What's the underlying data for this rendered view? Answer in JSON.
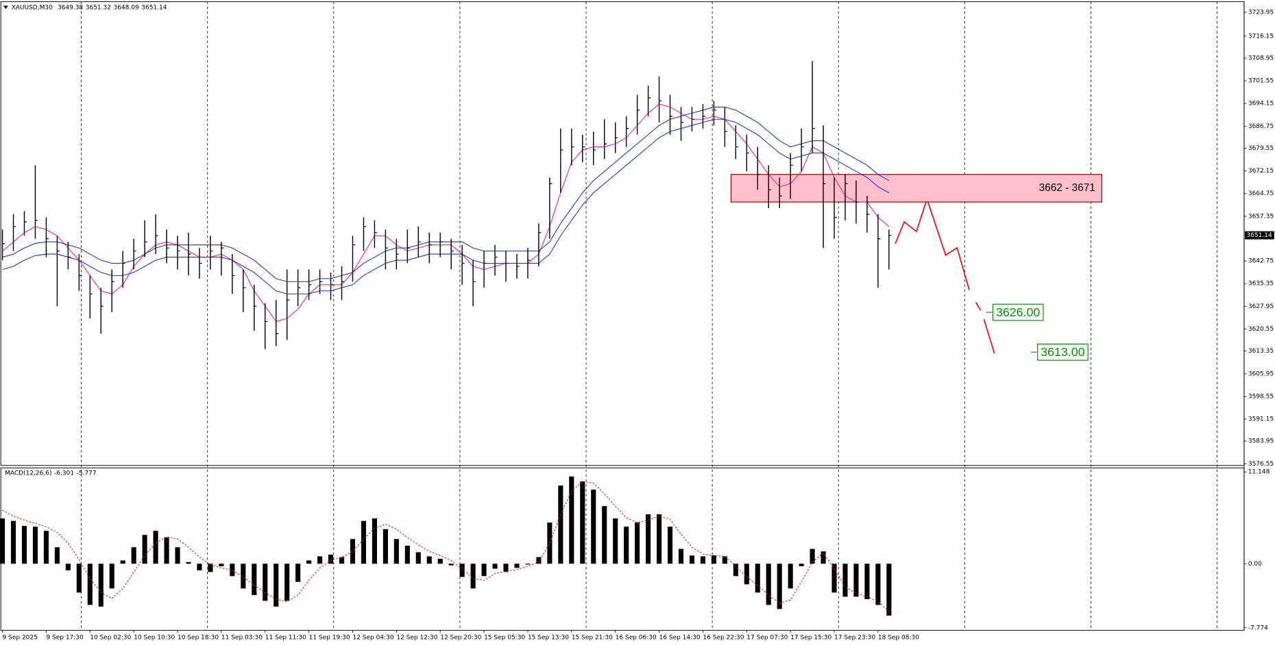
{
  "chart_data": [
    {
      "type": "ohlc",
      "header": {
        "symbol": "XAUUSD,M30",
        "open": 3649.38,
        "high": 3651.32,
        "low": 3648.09,
        "close": 3651.14
      },
      "ylim": [
        3576.0,
        3727.4
      ],
      "yticks": [
        3723.95,
        3716.15,
        3708.95,
        3701.55,
        3694.15,
        3686.75,
        3679.55,
        3672.15,
        3664.75,
        3657.35,
        3642.75,
        3635.35,
        3627.95,
        3620.55,
        3613.35,
        3605.95,
        3598.55,
        3591.15,
        3583.95,
        3576.55
      ],
      "color": "#000000",
      "high": [
        3653,
        3658,
        3659,
        3674,
        3657,
        3651,
        3649,
        3645,
        3638,
        3634,
        3640,
        3646,
        3650,
        3656,
        3658,
        3653,
        3651,
        3652,
        3647,
        3651,
        3649,
        3645,
        3640,
        3635,
        3629,
        3630,
        3640,
        3640,
        3640,
        3640,
        3639,
        3641,
        3651,
        3657,
        3656,
        3653,
        3650,
        3653,
        3654,
        3652,
        3652,
        3650,
        3648,
        3643,
        3646,
        3648,
        3646,
        3645,
        3647,
        3655,
        3670,
        3686,
        3686,
        3684,
        3685,
        3689,
        3688,
        3690,
        3697,
        3700,
        3703,
        3697,
        3693,
        3693,
        3694,
        3695,
        3693,
        3687,
        3684,
        3680,
        3674,
        3670,
        3678,
        3686,
        3708,
        3687,
        3670,
        3671,
        3669,
        3664,
        3658,
        3653
      ],
      "low": [
        3643,
        3646,
        3651,
        3650,
        3644,
        3628,
        3640,
        3633,
        3624,
        3619,
        3626,
        3634,
        3640,
        3644,
        3645,
        3642,
        3640,
        3638,
        3637,
        3640,
        3638,
        3632,
        3626,
        3620,
        3614,
        3615,
        3617,
        3628,
        3630,
        3632,
        3630,
        3630,
        3636,
        3646,
        3647,
        3640,
        3640,
        3642,
        3644,
        3642,
        3644,
        3640,
        3635,
        3628,
        3634,
        3638,
        3636,
        3637,
        3637,
        3641,
        3650,
        3665,
        3674,
        3675,
        3674,
        3676,
        3678,
        3680,
        3684,
        3690,
        3688,
        3684,
        3682,
        3685,
        3686,
        3687,
        3680,
        3676,
        3672,
        3666,
        3660,
        3660,
        3663,
        3672,
        3678,
        3647,
        3650,
        3656,
        3655,
        3652,
        3634,
        3640
      ],
      "close": [
        3648.4,
        3654,
        3655.5,
        3656,
        3650,
        3646,
        3644,
        3638,
        3632,
        3628,
        3636,
        3642,
        3646,
        3649,
        3651,
        3647,
        3646,
        3645,
        3642,
        3646,
        3647,
        3638,
        3634,
        3628,
        3623,
        3619,
        3630,
        3634,
        3635,
        3636,
        3635,
        3636,
        3648,
        3654,
        3652,
        3647,
        3645,
        3647,
        3649,
        3648,
        3649,
        3646,
        3642,
        3636,
        3642,
        3644,
        3642,
        3641,
        3643,
        3652,
        3668,
        3679,
        3680,
        3680,
        3679,
        3681,
        3683,
        3686,
        3692,
        3696,
        3695,
        3690,
        3688,
        3689,
        3690,
        3692,
        3685,
        3680,
        3678,
        3671,
        3666,
        3664,
        3674,
        3680,
        3686,
        3668,
        3657,
        3668,
        3662,
        3658,
        3650,
        3651.14
      ],
      "lines": [
        {
          "color": "#ff1493",
          "values": [
            3646,
            3649,
            3652,
            3654,
            3653,
            3651,
            3647,
            3643,
            3638,
            3633,
            3632,
            3635,
            3641,
            3645,
            3648,
            3649,
            3648,
            3646,
            3644,
            3644,
            3645,
            3643,
            3640,
            3633,
            3628,
            3623,
            3624,
            3627,
            3632,
            3635,
            3635,
            3635,
            3639,
            3645,
            3651,
            3651,
            3648,
            3646,
            3647,
            3648,
            3648,
            3648,
            3645,
            3641,
            3640,
            3641,
            3642,
            3642,
            3642,
            3645,
            3654,
            3665,
            3675,
            3679,
            3680,
            3680,
            3681,
            3683,
            3687,
            3691,
            3694,
            3693,
            3691,
            3689,
            3689,
            3690,
            3689,
            3685,
            3681,
            3676,
            3671,
            3667,
            3668,
            3672,
            3680,
            3678,
            3670,
            3664,
            3662,
            3662,
            3657,
            3654
          ]
        },
        {
          "color": "#1e2fd6",
          "values": [
            3644,
            3645,
            3647,
            3648.5,
            3649,
            3649,
            3648,
            3647,
            3645,
            3643,
            3642,
            3642,
            3643,
            3645,
            3647,
            3648,
            3648,
            3648,
            3648,
            3648,
            3648,
            3647,
            3645,
            3643,
            3640,
            3637,
            3636,
            3636,
            3636,
            3637,
            3637,
            3638,
            3639,
            3642,
            3644,
            3646,
            3647,
            3647,
            3648,
            3649,
            3649,
            3649,
            3649,
            3647,
            3646,
            3646,
            3646,
            3646,
            3646,
            3646,
            3649,
            3655,
            3660,
            3665,
            3669,
            3672,
            3675,
            3678,
            3681,
            3684,
            3687,
            3689,
            3690,
            3691,
            3692,
            3693,
            3693,
            3692,
            3690,
            3688,
            3685,
            3682,
            3680,
            3681,
            3682,
            3682,
            3680,
            3678,
            3676,
            3674,
            3671,
            3669
          ]
        },
        {
          "color": "#1e2fd6",
          "values": [
            3640,
            3641,
            3643,
            3644.5,
            3645,
            3645,
            3644,
            3643,
            3641,
            3639,
            3638,
            3638,
            3639,
            3641,
            3643,
            3644,
            3644,
            3644,
            3644,
            3644,
            3644,
            3643,
            3641,
            3639,
            3636,
            3633,
            3632,
            3632,
            3632,
            3633,
            3633,
            3634,
            3635,
            3638,
            3640,
            3642,
            3643,
            3643,
            3644,
            3645,
            3645,
            3645,
            3645,
            3643,
            3642,
            3642,
            3642,
            3642,
            3642,
            3642,
            3645,
            3651,
            3656,
            3661,
            3665,
            3668,
            3671,
            3674,
            3677,
            3680,
            3683,
            3685,
            3686,
            3687,
            3688,
            3689,
            3689,
            3688,
            3686,
            3684,
            3681,
            3678,
            3676,
            3677,
            3678,
            3678,
            3676,
            3674,
            3672,
            3670,
            3667,
            3665
          ]
        }
      ],
      "zone": {
        "label": "3662 - 3671",
        "low": 3662,
        "high": 3671,
        "color": "#ffc0cb"
      },
      "targets": [
        {
          "value": 3626,
          "label": "3626.00"
        },
        {
          "value": 3613,
          "label": "3613.00"
        }
      ]
    },
    {
      "type": "macd",
      "title": "MACD(12,26,6)",
      "ylim": [
        -7.99,
        11.64
      ],
      "yticks": [
        11.148,
        {
          "value": 0,
          "label": "0.00"
        },
        -7.774
      ],
      "categories": [
        "9 Sep 2025",
        null,
        null,
        null,
        "9 Sep 17:30",
        null,
        null,
        null,
        "10 Sep 02:30",
        null,
        null,
        null,
        "10 Sep 10:30",
        null,
        null,
        null,
        "10 Sep 18:30",
        null,
        null,
        null,
        "11 Sep 03:30",
        null,
        null,
        null,
        "11 Sep 11:30",
        null,
        null,
        null,
        "11 Sep 19:30",
        null,
        null,
        null,
        "12 Sep 04:30",
        null,
        null,
        null,
        "12 Sep 12:30",
        null,
        null,
        null,
        "12 Sep 20:30",
        null,
        null,
        null,
        "15 Sep 05:30",
        null,
        null,
        null,
        "15 Sep 13:30",
        null,
        null,
        null,
        "15 Sep 21:30",
        null,
        null,
        null,
        "16 Sep 06:30",
        null,
        null,
        null,
        "16 Sep 14:30",
        null,
        null,
        null,
        "16 Sep 22:30",
        null,
        null,
        null,
        "17 Sep 07:30",
        null,
        null,
        null,
        "17 Sep 15:30",
        null,
        null,
        null,
        "17 Sep 23:30",
        null,
        null,
        null,
        "18 Sep 08:30",
        null
      ],
      "histogram": {
        "color": "#000000",
        "values": [
          5.5,
          5.2,
          4.6,
          4.5,
          4.0,
          2.0,
          -0.8,
          -3.5,
          -5.0,
          -5.2,
          -3.0,
          0.4,
          2.0,
          3.5,
          4.0,
          3.2,
          2.0,
          0.2,
          -0.8,
          -1.0,
          -0.3,
          -1.5,
          -3.0,
          -3.8,
          -4.5,
          -5.2,
          -4.5,
          -2.2,
          0.4,
          0.9,
          1.1,
          0.8,
          3.0,
          5.2,
          5.5,
          4.2,
          3.0,
          2.2,
          1.4,
          0.9,
          0.6,
          -0.2,
          -1.6,
          -3.0,
          -1.5,
          -0.6,
          -1.0,
          -0.5,
          -0.1,
          0.8,
          5.0,
          9.5,
          10.6,
          10.0,
          9.0,
          7.0,
          5.5,
          4.5,
          5.0,
          6.0,
          6.0,
          4.5,
          1.8,
          1.0,
          0.9,
          1.0,
          0.9,
          -1.5,
          -2.5,
          -3.5,
          -5.0,
          -5.5,
          -3.0,
          -0.3,
          1.8,
          1.5,
          -3.5,
          -4.0,
          -4.0,
          -4.3,
          -5.0,
          -6.301
        ]
      },
      "signal": {
        "color": "#ff0000",
        "values": [
          6.5,
          5.8,
          5.3,
          4.9,
          4.5,
          3.8,
          2.5,
          0.5,
          -1.8,
          -3.5,
          -4.2,
          -3.0,
          -1.0,
          1.0,
          2.5,
          3.3,
          3.0,
          2.0,
          0.8,
          -0.1,
          -0.5,
          -0.8,
          -1.6,
          -2.6,
          -3.5,
          -4.3,
          -4.6,
          -3.8,
          -2.0,
          -0.5,
          0.4,
          0.8,
          1.5,
          3.0,
          4.3,
          4.8,
          4.2,
          3.2,
          2.3,
          1.5,
          1.0,
          0.4,
          -0.6,
          -1.8,
          -2.0,
          -1.2,
          -0.9,
          -0.7,
          -0.3,
          0.2,
          2.5,
          6.0,
          8.8,
          10.0,
          9.8,
          8.5,
          7.0,
          5.6,
          5.0,
          5.3,
          5.8,
          5.4,
          3.6,
          2.0,
          1.2,
          1.0,
          0.9,
          -0.3,
          -1.6,
          -2.6,
          -3.8,
          -4.8,
          -4.4,
          -2.2,
          0.2,
          1.3,
          -0.6,
          -2.8,
          -3.6,
          -4.0,
          -4.6,
          -5.777
        ]
      }
    }
  ]
}
